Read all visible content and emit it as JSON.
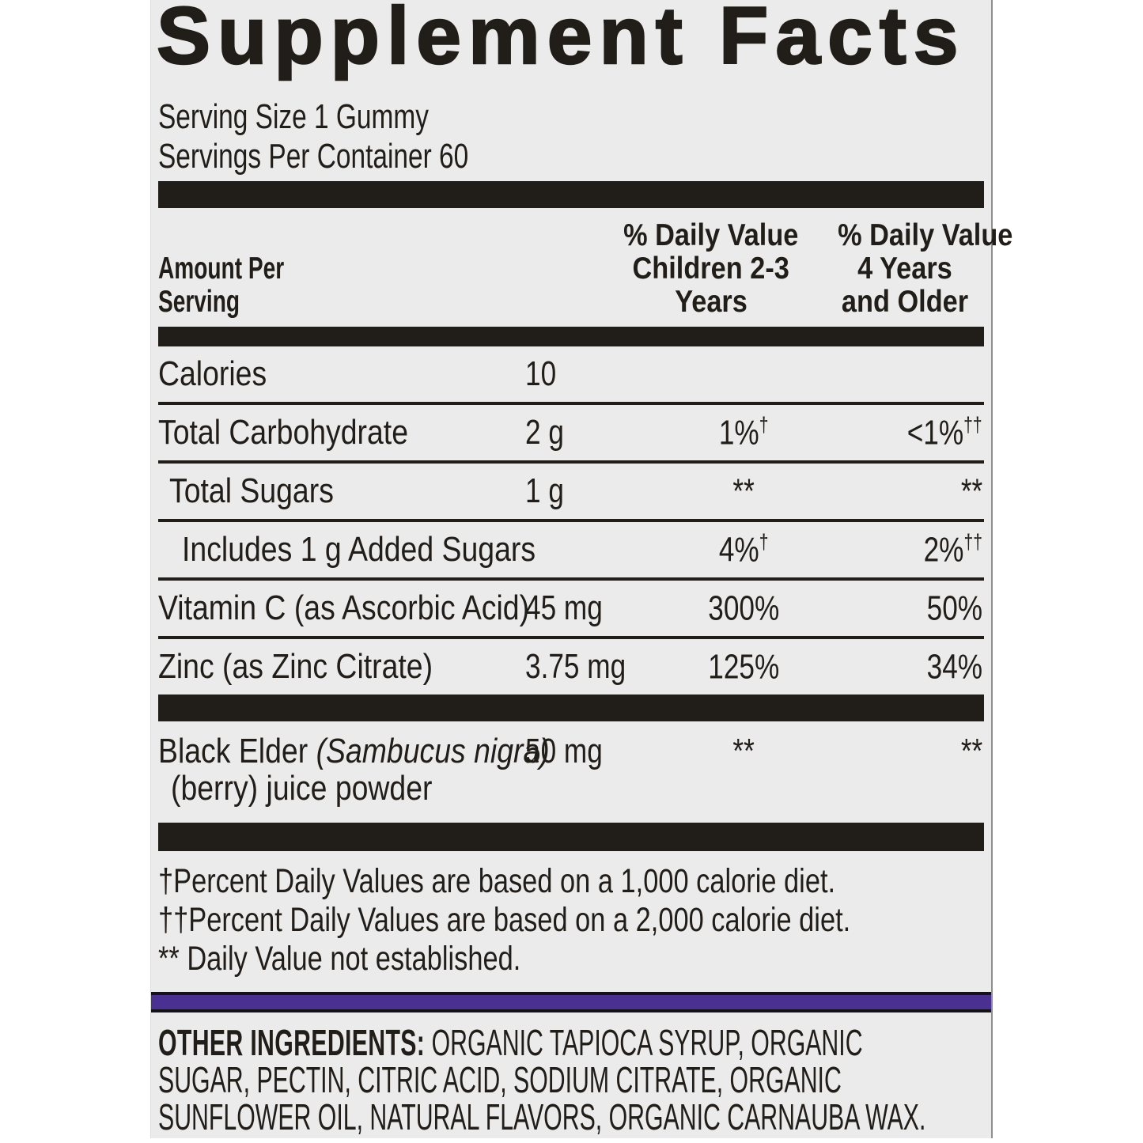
{
  "title": "Supplement Facts",
  "serving_info": {
    "serving_size": "Serving Size 1 Gummy",
    "servings_per_container": "Servings Per Container 60"
  },
  "table": {
    "header": {
      "amount": [
        "Amount Per",
        "Serving"
      ],
      "dv_children": [
        "% Daily Value",
        "Children 2-3",
        "Years"
      ],
      "dv_older": [
        "% Daily Value",
        "4 Years",
        "and Older"
      ]
    },
    "rows": [
      {
        "name": "Calories",
        "amount": "10",
        "dv1": "",
        "dv1_sup": "",
        "dv2": "",
        "dv2_sup": ""
      },
      {
        "name": "Total Carbohydrate",
        "amount": "2 g",
        "dv1": "1%",
        "dv1_sup": "†",
        "dv2": "<1%",
        "dv2_sup": "††"
      },
      {
        "name": "Total Sugars",
        "amount": "1 g",
        "dv1": "**",
        "dv1_sup": "",
        "dv2": "**",
        "dv2_sup": ""
      },
      {
        "name": "Includes 1 g Added Sugars",
        "amount": "",
        "dv1": "4%",
        "dv1_sup": "†",
        "dv2": "2%",
        "dv2_sup": "††"
      },
      {
        "name": "Vitamin C (as Ascorbic Acid)",
        "amount": "45 mg",
        "dv1": "300%",
        "dv1_sup": "",
        "dv2": "50%",
        "dv2_sup": ""
      },
      {
        "name": "Zinc (as Zinc Citrate)",
        "amount": "3.75 mg",
        "dv1": "125%",
        "dv1_sup": "",
        "dv2": "34%",
        "dv2_sup": ""
      }
    ],
    "botanical": {
      "name": "Black Elder",
      "latin": "(Sambucus nigra)",
      "name_line2": "(berry) juice powder",
      "amount": "50 mg",
      "dv1": "**",
      "dv2": "**"
    }
  },
  "footnotes": [
    "†Percent Daily Values are based on a 1,000 calorie diet.",
    "††Percent Daily Values are based on a 2,000 calorie diet.",
    "** Daily Value not established."
  ],
  "other_ingredients": {
    "label": "OTHER INGREDIENTS:",
    "lines": [
      "ORGANIC TAPIOCA SYRUP, ORGANIC",
      "SUGAR, PECTIN, CITRIC ACID, SODIUM CITRATE, ORGANIC",
      "SUNFLOWER OIL, NATURAL FLAVORS, ORGANIC CARNAUBA WAX."
    ]
  },
  "colors": {
    "panel_bg": "#ebebeb",
    "ink": "#211d18",
    "accent_stripe": "#4a3090"
  }
}
